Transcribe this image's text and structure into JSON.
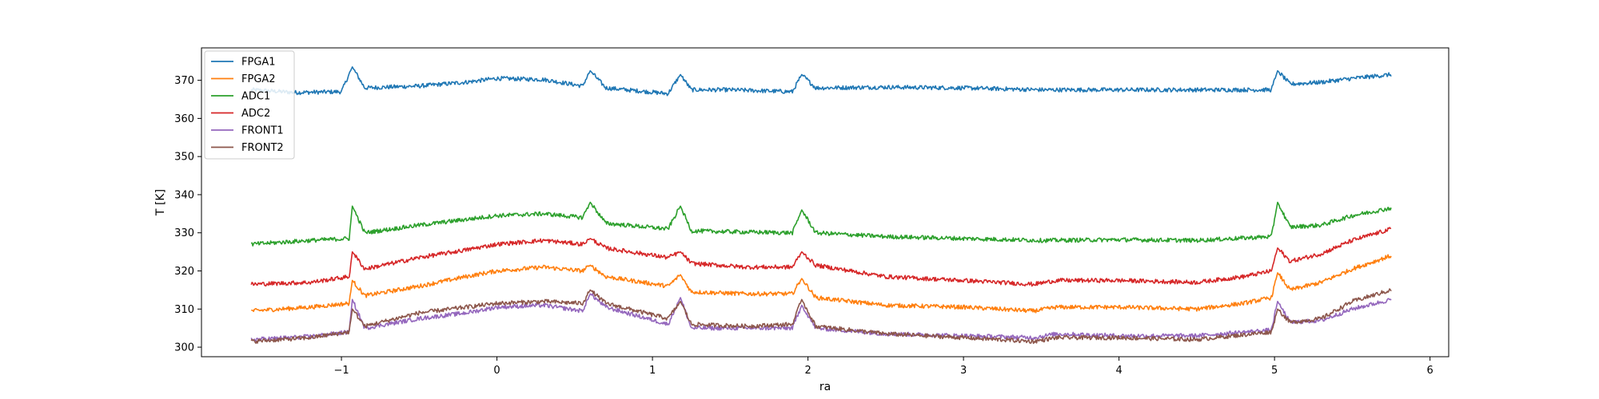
{
  "chart_data": {
    "type": "line",
    "xlabel": "ra",
    "ylabel": "T [K]",
    "xlim": [
      -1.9,
      6.12
    ],
    "ylim": [
      297.5,
      378.5
    ],
    "xticks": [
      -1,
      0,
      1,
      2,
      3,
      4,
      5,
      6
    ],
    "xtick_labels": [
      "−1",
      "0",
      "1",
      "2",
      "3",
      "4",
      "5",
      "6"
    ],
    "yticks": [
      300,
      310,
      320,
      330,
      340,
      350,
      360,
      370
    ],
    "ytick_labels": [
      "300",
      "310",
      "320",
      "330",
      "340",
      "350",
      "360",
      "370"
    ],
    "grid": false,
    "legend_position": "top-left",
    "spikes_at": [
      -0.93,
      0.6,
      1.18,
      1.96,
      5.02
    ],
    "series": [
      {
        "name": "FPGA1",
        "color": "#1f77b4",
        "points": [
          [
            -1.58,
            367.5
          ],
          [
            -1.3,
            366.8
          ],
          [
            -1.0,
            367.0
          ],
          [
            -0.93,
            373.5
          ],
          [
            -0.85,
            368.0
          ],
          [
            -0.5,
            368.5
          ],
          [
            -0.2,
            369.5
          ],
          [
            0.0,
            370.5
          ],
          [
            0.3,
            370.2
          ],
          [
            0.55,
            368.5
          ],
          [
            0.6,
            372.5
          ],
          [
            0.7,
            368.0
          ],
          [
            1.1,
            366.5
          ],
          [
            1.18,
            371.5
          ],
          [
            1.25,
            367.5
          ],
          [
            1.5,
            367.5
          ],
          [
            1.9,
            367.0
          ],
          [
            1.96,
            371.5
          ],
          [
            2.05,
            368.0
          ],
          [
            2.5,
            368.2
          ],
          [
            3.0,
            368.0
          ],
          [
            3.5,
            367.5
          ],
          [
            4.0,
            367.5
          ],
          [
            4.5,
            367.5
          ],
          [
            4.98,
            367.5
          ],
          [
            5.02,
            372.5
          ],
          [
            5.1,
            369.0
          ],
          [
            5.3,
            369.5
          ],
          [
            5.5,
            370.5
          ],
          [
            5.75,
            371.5
          ]
        ]
      },
      {
        "name": "FPGA2",
        "color": "#ff7f0e",
        "points": [
          [
            -1.58,
            309.5
          ],
          [
            -1.2,
            310.5
          ],
          [
            -0.95,
            311.5
          ],
          [
            -0.93,
            317.5
          ],
          [
            -0.85,
            313.5
          ],
          [
            -0.5,
            316.0
          ],
          [
            -0.2,
            318.5
          ],
          [
            0.0,
            320.0
          ],
          [
            0.3,
            321.0
          ],
          [
            0.55,
            320.0
          ],
          [
            0.6,
            321.5
          ],
          [
            0.7,
            318.5
          ],
          [
            1.1,
            316.0
          ],
          [
            1.18,
            319.0
          ],
          [
            1.25,
            314.5
          ],
          [
            1.6,
            314.0
          ],
          [
            1.9,
            314.0
          ],
          [
            1.96,
            318.0
          ],
          [
            2.05,
            313.0
          ],
          [
            2.5,
            311.0
          ],
          [
            3.0,
            310.5
          ],
          [
            3.45,
            309.5
          ],
          [
            3.6,
            310.5
          ],
          [
            4.0,
            310.5
          ],
          [
            4.5,
            310.0
          ],
          [
            4.8,
            311.5
          ],
          [
            4.98,
            313.0
          ],
          [
            5.02,
            319.5
          ],
          [
            5.1,
            315.0
          ],
          [
            5.3,
            317.0
          ],
          [
            5.5,
            320.5
          ],
          [
            5.75,
            324.0
          ]
        ]
      },
      {
        "name": "ADC1",
        "color": "#2ca02c",
        "points": [
          [
            -1.58,
            327.0
          ],
          [
            -1.2,
            328.0
          ],
          [
            -0.95,
            328.5
          ],
          [
            -0.93,
            337.0
          ],
          [
            -0.85,
            330.0
          ],
          [
            -0.5,
            332.0
          ],
          [
            -0.2,
            333.5
          ],
          [
            0.0,
            334.5
          ],
          [
            0.3,
            335.0
          ],
          [
            0.55,
            334.0
          ],
          [
            0.6,
            338.0
          ],
          [
            0.7,
            332.5
          ],
          [
            1.1,
            331.0
          ],
          [
            1.18,
            337.0
          ],
          [
            1.25,
            330.5
          ],
          [
            1.6,
            330.2
          ],
          [
            1.9,
            330.0
          ],
          [
            1.96,
            336.0
          ],
          [
            2.05,
            330.0
          ],
          [
            2.5,
            329.0
          ],
          [
            3.0,
            328.5
          ],
          [
            3.5,
            328.0
          ],
          [
            4.0,
            328.2
          ],
          [
            4.5,
            328.0
          ],
          [
            4.98,
            329.0
          ],
          [
            5.02,
            338.0
          ],
          [
            5.1,
            331.5
          ],
          [
            5.3,
            332.0
          ],
          [
            5.5,
            334.5
          ],
          [
            5.75,
            336.5
          ]
        ]
      },
      {
        "name": "ADC2",
        "color": "#d62728",
        "points": [
          [
            -1.58,
            316.5
          ],
          [
            -1.2,
            317.0
          ],
          [
            -0.95,
            318.5
          ],
          [
            -0.93,
            325.0
          ],
          [
            -0.85,
            320.5
          ],
          [
            -0.5,
            323.5
          ],
          [
            -0.2,
            325.5
          ],
          [
            0.0,
            327.0
          ],
          [
            0.3,
            328.0
          ],
          [
            0.55,
            327.0
          ],
          [
            0.6,
            328.5
          ],
          [
            0.7,
            326.0
          ],
          [
            1.1,
            323.5
          ],
          [
            1.18,
            325.0
          ],
          [
            1.25,
            322.0
          ],
          [
            1.6,
            321.0
          ],
          [
            1.9,
            321.0
          ],
          [
            1.96,
            325.0
          ],
          [
            2.05,
            321.5
          ],
          [
            2.5,
            318.5
          ],
          [
            3.0,
            317.5
          ],
          [
            3.45,
            316.5
          ],
          [
            3.6,
            317.5
          ],
          [
            4.0,
            317.5
          ],
          [
            4.5,
            317.0
          ],
          [
            4.8,
            318.5
          ],
          [
            4.98,
            320.0
          ],
          [
            5.02,
            326.0
          ],
          [
            5.1,
            322.5
          ],
          [
            5.3,
            324.5
          ],
          [
            5.5,
            328.0
          ],
          [
            5.75,
            331.0
          ]
        ]
      },
      {
        "name": "FRONT1",
        "color": "#9467bd",
        "points": [
          [
            -1.58,
            302.0
          ],
          [
            -1.2,
            302.8
          ],
          [
            -0.95,
            304.0
          ],
          [
            -0.93,
            312.5
          ],
          [
            -0.85,
            305.0
          ],
          [
            -0.5,
            307.5
          ],
          [
            -0.2,
            309.0
          ],
          [
            0.0,
            310.5
          ],
          [
            0.3,
            311.0
          ],
          [
            0.55,
            309.5
          ],
          [
            0.6,
            314.0
          ],
          [
            0.7,
            310.5
          ],
          [
            1.1,
            306.0
          ],
          [
            1.18,
            313.0
          ],
          [
            1.25,
            305.0
          ],
          [
            1.6,
            305.0
          ],
          [
            1.9,
            305.0
          ],
          [
            1.96,
            311.0
          ],
          [
            2.05,
            305.0
          ],
          [
            2.5,
            303.5
          ],
          [
            3.0,
            303.0
          ],
          [
            3.45,
            302.5
          ],
          [
            3.6,
            303.5
          ],
          [
            4.0,
            303.0
          ],
          [
            4.5,
            303.0
          ],
          [
            4.98,
            304.5
          ],
          [
            5.02,
            312.0
          ],
          [
            5.1,
            306.5
          ],
          [
            5.3,
            307.0
          ],
          [
            5.5,
            310.0
          ],
          [
            5.75,
            312.5
          ]
        ]
      },
      {
        "name": "FRONT2",
        "color": "#8c564b",
        "points": [
          [
            -1.58,
            301.5
          ],
          [
            -1.2,
            302.5
          ],
          [
            -0.95,
            304.0
          ],
          [
            -0.93,
            310.0
          ],
          [
            -0.85,
            305.5
          ],
          [
            -0.5,
            309.0
          ],
          [
            -0.2,
            310.5
          ],
          [
            0.0,
            311.5
          ],
          [
            0.3,
            312.0
          ],
          [
            0.55,
            311.5
          ],
          [
            0.6,
            315.0
          ],
          [
            0.7,
            311.5
          ],
          [
            1.1,
            307.5
          ],
          [
            1.18,
            312.0
          ],
          [
            1.25,
            306.0
          ],
          [
            1.6,
            305.5
          ],
          [
            1.9,
            306.0
          ],
          [
            1.96,
            312.5
          ],
          [
            2.05,
            305.5
          ],
          [
            2.5,
            303.5
          ],
          [
            3.0,
            302.5
          ],
          [
            3.45,
            301.5
          ],
          [
            3.6,
            302.5
          ],
          [
            4.0,
            302.5
          ],
          [
            4.5,
            302.0
          ],
          [
            4.98,
            304.0
          ],
          [
            5.02,
            310.0
          ],
          [
            5.1,
            306.5
          ],
          [
            5.3,
            307.5
          ],
          [
            5.5,
            312.0
          ],
          [
            5.75,
            315.0
          ]
        ]
      }
    ]
  }
}
